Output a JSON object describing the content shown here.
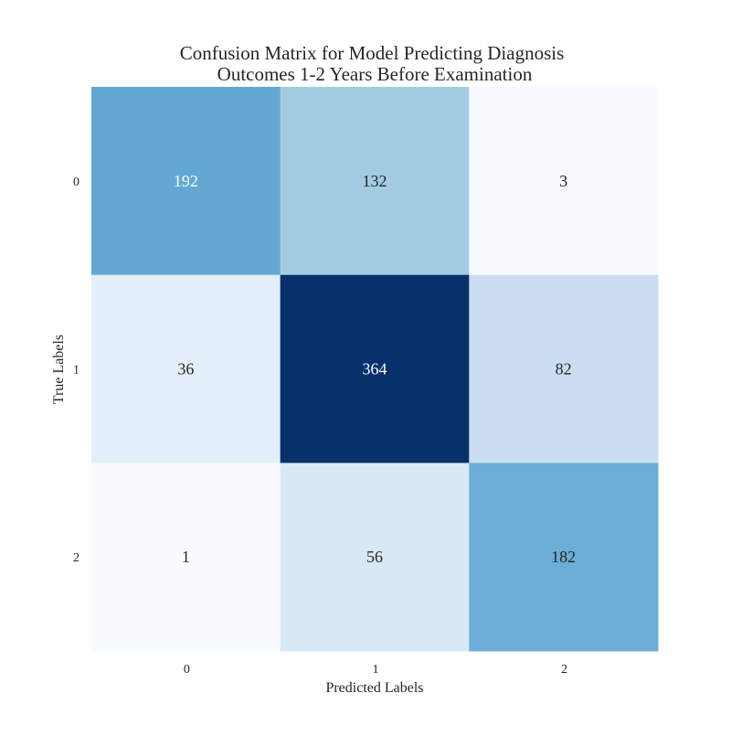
{
  "chart_data": {
    "type": "heatmap",
    "title_lines": [
      "Confusion Matrix for Model Predicting Diagnosis",
      "Outcomes 1-2 Years Before Examination"
    ],
    "xlabel": "Predicted Labels",
    "ylabel": "True Labels",
    "x_tick_labels": [
      "0",
      "1",
      "2"
    ],
    "y_tick_labels": [
      "0",
      "1",
      "2"
    ],
    "values": [
      [
        192,
        132,
        3
      ],
      [
        36,
        364,
        82
      ],
      [
        1,
        56,
        182
      ]
    ],
    "colormap": "Blues",
    "color_range": [
      1,
      364
    ],
    "colorbar": false,
    "grid": false
  }
}
